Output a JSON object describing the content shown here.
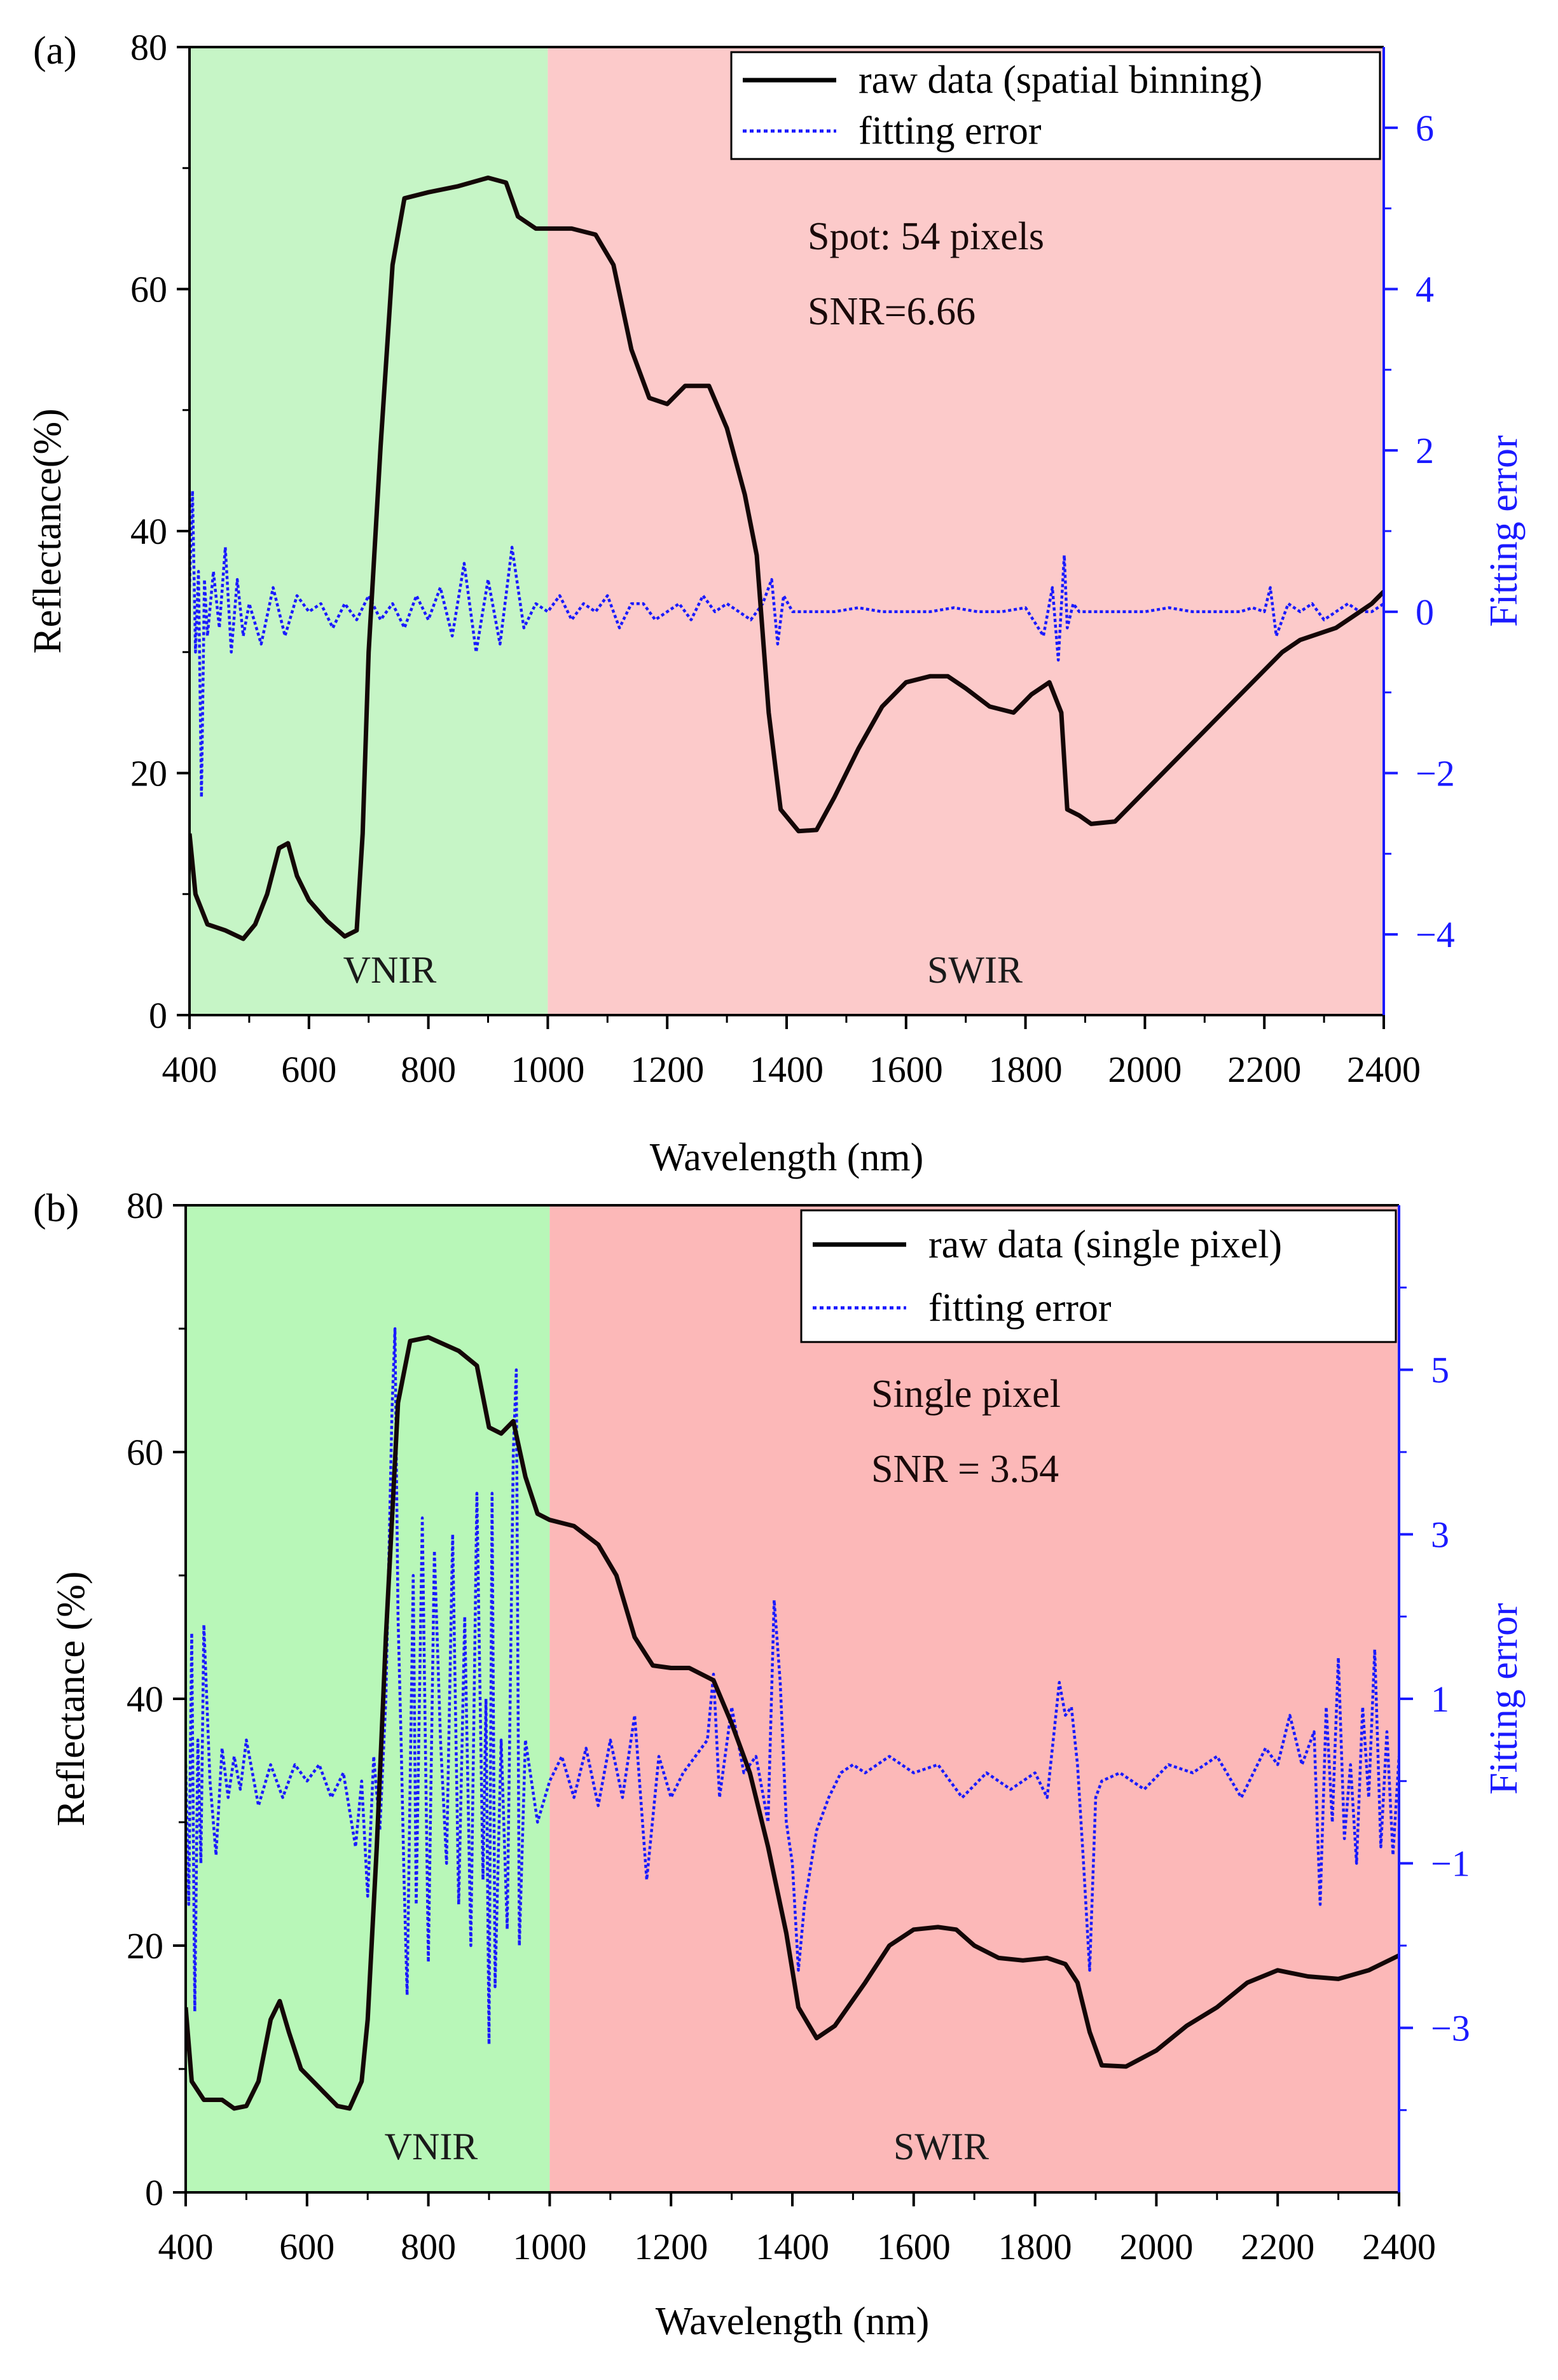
{
  "chart_data": [
    {
      "panel_label": "(a)",
      "type": "line",
      "title": "",
      "xlabel": "Wavelength (nm)",
      "ylabel": "Reflectance(%)",
      "y2label": "Fitting error",
      "xlim": [
        400,
        2400
      ],
      "ylim": [
        0,
        80
      ],
      "y2lim": [
        -5,
        7
      ],
      "x_ticks": [
        400,
        600,
        800,
        1000,
        1200,
        1400,
        1600,
        1800,
        2000,
        2200,
        2400
      ],
      "y_ticks": [
        0,
        20,
        40,
        60,
        80
      ],
      "y2_ticks": [
        -4,
        -2,
        0,
        2,
        4,
        6
      ],
      "y2_tick_labels": [
        "−4",
        "−2",
        "0",
        "2",
        "4",
        "6"
      ],
      "regions": [
        {
          "label": "VNIR",
          "x_start": 400,
          "x_end": 1000,
          "color": "#c6f5c6"
        },
        {
          "label": "SWIR",
          "x_start": 1000,
          "x_end": 2400,
          "color": "#fccaca"
        }
      ],
      "annotations": [
        "Spot:  54 pixels",
        "SNR=6.66"
      ],
      "legend": {
        "position": "top-right",
        "entries": [
          "raw data (spatial binning)",
          "fitting error"
        ]
      },
      "series": [
        {
          "name": "raw data (spatial binning)",
          "axis": "left",
          "color": "#140707",
          "style": "solid",
          "x": [
            400,
            410,
            430,
            460,
            490,
            510,
            530,
            550,
            565,
            580,
            600,
            630,
            660,
            680,
            690,
            700,
            720,
            740,
            760,
            800,
            850,
            900,
            930,
            950,
            980,
            1000,
            1040,
            1080,
            1110,
            1140,
            1170,
            1200,
            1230,
            1270,
            1300,
            1330,
            1350,
            1370,
            1390,
            1420,
            1450,
            1480,
            1520,
            1560,
            1600,
            1640,
            1670,
            1700,
            1740,
            1780,
            1810,
            1840,
            1860,
            1870,
            1890,
            1910,
            1950,
            2000,
            2050,
            2100,
            2150,
            2200,
            2230,
            2260,
            2290,
            2320,
            2350,
            2380,
            2400
          ],
          "y": [
            15,
            10,
            7.5,
            7,
            6.3,
            7.5,
            10,
            13.8,
            14.2,
            11.5,
            9.5,
            7.8,
            6.5,
            7,
            15,
            30,
            47,
            62,
            67.5,
            68,
            68.5,
            69.2,
            68.8,
            66,
            65,
            65,
            65,
            64.5,
            62,
            55,
            51,
            50.5,
            52,
            52,
            48.5,
            43,
            38,
            25,
            17,
            15.2,
            15.3,
            18,
            22,
            25.5,
            27.5,
            28,
            28,
            27,
            25.5,
            25,
            26.5,
            27.5,
            25,
            17,
            16.5,
            15.8,
            16,
            18.5,
            21,
            23.5,
            26,
            28.5,
            30,
            31,
            31.5,
            32,
            33,
            34,
            35
          ]
        },
        {
          "name": "fitting error",
          "axis": "right",
          "color": "#1a1aff",
          "style": "dotted",
          "x": [
            400,
            405,
            410,
            415,
            420,
            425,
            430,
            440,
            450,
            460,
            470,
            480,
            490,
            500,
            520,
            540,
            560,
            580,
            600,
            620,
            640,
            660,
            680,
            700,
            720,
            740,
            760,
            780,
            800,
            820,
            840,
            860,
            880,
            900,
            920,
            940,
            960,
            980,
            1000,
            1020,
            1040,
            1060,
            1080,
            1100,
            1120,
            1140,
            1160,
            1180,
            1200,
            1220,
            1240,
            1260,
            1280,
            1300,
            1320,
            1340,
            1360,
            1375,
            1385,
            1395,
            1410,
            1440,
            1480,
            1520,
            1560,
            1600,
            1640,
            1680,
            1720,
            1760,
            1800,
            1830,
            1845,
            1855,
            1865,
            1870,
            1880,
            1890,
            1900,
            1920,
            1960,
            2000,
            2040,
            2080,
            2120,
            2160,
            2180,
            2200,
            2210,
            2220,
            2240,
            2260,
            2280,
            2300,
            2320,
            2340,
            2360,
            2380,
            2400
          ],
          "y": [
            0.3,
            1.5,
            -0.5,
            0.5,
            -2.3,
            0.4,
            -0.3,
            0.5,
            -0.2,
            0.8,
            -0.5,
            0.4,
            -0.3,
            0.1,
            -0.4,
            0.3,
            -0.3,
            0.2,
            0,
            0.1,
            -0.2,
            0.1,
            -0.1,
            0.2,
            -0.1,
            0.1,
            -0.2,
            0.2,
            -0.1,
            0.3,
            -0.3,
            0.6,
            -0.5,
            0.4,
            -0.4,
            0.8,
            -0.2,
            0.1,
            0,
            0.2,
            -0.1,
            0.1,
            0,
            0.2,
            -0.2,
            0.1,
            0.1,
            -0.1,
            0,
            0.1,
            -0.1,
            0.2,
            0,
            0.1,
            0,
            -0.1,
            0.1,
            0.4,
            -0.4,
            0.2,
            0,
            0,
            0,
            0.05,
            0,
            0,
            0,
            0.05,
            0,
            0,
            0.05,
            -0.3,
            0.3,
            -0.6,
            0.7,
            -0.2,
            0.1,
            0,
            0,
            0,
            0,
            0,
            0.05,
            0,
            0,
            0,
            0.05,
            0,
            0.3,
            -0.3,
            0.1,
            0,
            0.1,
            -0.1,
            0,
            0.1,
            0,
            0,
            0.1
          ]
        }
      ]
    },
    {
      "panel_label": "(b)",
      "type": "line",
      "title": "",
      "xlabel": "Wavelength (nm)",
      "ylabel": "Reflectance (%)",
      "y2label": "Fitting error",
      "xlim": [
        400,
        2400
      ],
      "ylim": [
        0,
        80
      ],
      "y2lim": [
        -5,
        7
      ],
      "x_ticks": [
        400,
        600,
        800,
        1000,
        1200,
        1400,
        1600,
        1800,
        2000,
        2200,
        2400
      ],
      "y_ticks": [
        0,
        20,
        40,
        60,
        80
      ],
      "y2_ticks": [
        -3,
        -1,
        1,
        3,
        5
      ],
      "y2_tick_labels": [
        "−3",
        "−1",
        "1",
        "3",
        "5"
      ],
      "regions": [
        {
          "label": "VNIR",
          "x_start": 400,
          "x_end": 1000,
          "color": "#b8f7b8"
        },
        {
          "label": "SWIR",
          "x_start": 1000,
          "x_end": 2400,
          "color": "#fcb8b8"
        }
      ],
      "annotations": [
        "Single pixel",
        "SNR = 3.54"
      ],
      "legend": {
        "position": "top-right",
        "entries": [
          "raw data (single pixel)",
          "fitting error"
        ]
      },
      "series": [
        {
          "name": "raw data (single pixel)",
          "axis": "left",
          "color": "#140707",
          "style": "solid",
          "x": [
            400,
            410,
            430,
            460,
            480,
            500,
            520,
            540,
            555,
            570,
            590,
            620,
            650,
            670,
            690,
            700,
            715,
            730,
            750,
            770,
            800,
            850,
            880,
            900,
            920,
            940,
            960,
            980,
            1000,
            1040,
            1080,
            1110,
            1140,
            1170,
            1200,
            1230,
            1270,
            1300,
            1330,
            1360,
            1390,
            1410,
            1440,
            1470,
            1520,
            1560,
            1600,
            1640,
            1670,
            1700,
            1740,
            1780,
            1820,
            1850,
            1870,
            1890,
            1910,
            1950,
            2000,
            2050,
            2100,
            2150,
            2200,
            2250,
            2300,
            2350,
            2400
          ],
          "y": [
            15,
            9,
            7.5,
            7.5,
            6.8,
            7,
            9,
            14,
            15.5,
            13,
            10,
            8.5,
            7,
            6.8,
            9,
            14,
            28,
            45,
            64,
            69,
            69.3,
            68.2,
            67,
            62,
            61.5,
            62.5,
            58,
            55,
            54.5,
            54,
            52.5,
            50,
            45,
            42.7,
            42.5,
            42.5,
            41.5,
            38,
            34,
            28,
            21,
            15,
            12.5,
            13.5,
            17,
            20,
            21.3,
            21.5,
            21.3,
            20,
            19,
            18.8,
            19,
            18.5,
            17,
            13,
            10.3,
            10.2,
            11.5,
            13.5,
            15,
            17,
            18,
            17.5,
            17.3,
            18,
            19.2
          ]
        },
        {
          "name": "fitting error",
          "axis": "right",
          "color": "#1a1aff",
          "style": "dotted",
          "x": [
            400,
            405,
            410,
            415,
            420,
            425,
            430,
            440,
            450,
            460,
            470,
            480,
            490,
            500,
            520,
            540,
            560,
            580,
            600,
            620,
            640,
            660,
            680,
            690,
            700,
            710,
            720,
            730,
            740,
            745,
            750,
            755,
            760,
            765,
            770,
            775,
            780,
            790,
            800,
            810,
            820,
            830,
            840,
            850,
            860,
            870,
            880,
            890,
            895,
            900,
            905,
            910,
            920,
            930,
            940,
            945,
            950,
            960,
            980,
            1000,
            1020,
            1040,
            1060,
            1080,
            1100,
            1120,
            1140,
            1160,
            1180,
            1200,
            1220,
            1240,
            1260,
            1270,
            1280,
            1300,
            1320,
            1340,
            1360,
            1370,
            1380,
            1390,
            1400,
            1410,
            1420,
            1440,
            1460,
            1480,
            1500,
            1520,
            1560,
            1600,
            1640,
            1680,
            1720,
            1760,
            1800,
            1820,
            1840,
            1850,
            1860,
            1870,
            1880,
            1890,
            1900,
            1910,
            1940,
            1980,
            2020,
            2060,
            2100,
            2140,
            2180,
            2200,
            2220,
            2240,
            2260,
            2270,
            2280,
            2290,
            2300,
            2310,
            2320,
            2330,
            2340,
            2350,
            2360,
            2370,
            2380,
            2390,
            2400
          ],
          "y": [
            0.2,
            -1.5,
            1.8,
            -2.8,
            0.5,
            -1.0,
            1.9,
            0.0,
            -0.9,
            0.4,
            -0.2,
            0.3,
            -0.1,
            0.5,
            -0.3,
            0.2,
            -0.2,
            0.2,
            0.0,
            0.2,
            -0.2,
            0.1,
            -0.8,
            0.0,
            -1.4,
            0.3,
            -0.6,
            1.0,
            4.5,
            5.5,
            2.0,
            0.5,
            -1.2,
            -2.6,
            0.0,
            2.5,
            -1.5,
            3.2,
            -2.2,
            2.8,
            0.5,
            -1.0,
            3.0,
            -1.5,
            2.0,
            -2.0,
            3.5,
            -1.2,
            1.0,
            -3.2,
            3.5,
            -2.5,
            0.5,
            -1.8,
            4.0,
            5.0,
            -2.0,
            0.5,
            -0.5,
            0.0,
            0.3,
            -0.2,
            0.4,
            -0.3,
            0.5,
            -0.2,
            0.8,
            -1.2,
            0.3,
            -0.2,
            0.1,
            0.3,
            0.5,
            1.3,
            -0.2,
            0.9,
            0.1,
            0.3,
            -0.5,
            2.2,
            1.2,
            -0.5,
            -1.0,
            -2.3,
            -1.5,
            -0.6,
            -0.2,
            0.1,
            0.2,
            0.1,
            0.3,
            0.1,
            0.2,
            -0.2,
            0.1,
            -0.1,
            0.1,
            -0.2,
            1.2,
            0.8,
            0.9,
            0.2,
            -1.0,
            -2.3,
            -0.2,
            0.0,
            0.1,
            -0.1,
            0.2,
            0.1,
            0.3,
            -0.2,
            0.4,
            0.2,
            0.8,
            0.2,
            0.6,
            -1.5,
            0.9,
            -0.5,
            1.5,
            -0.7,
            0.2,
            -1.0,
            0.9,
            -0.2,
            1.6,
            -0.8,
            0.6,
            -0.9,
            0.3
          ]
        }
      ]
    }
  ]
}
